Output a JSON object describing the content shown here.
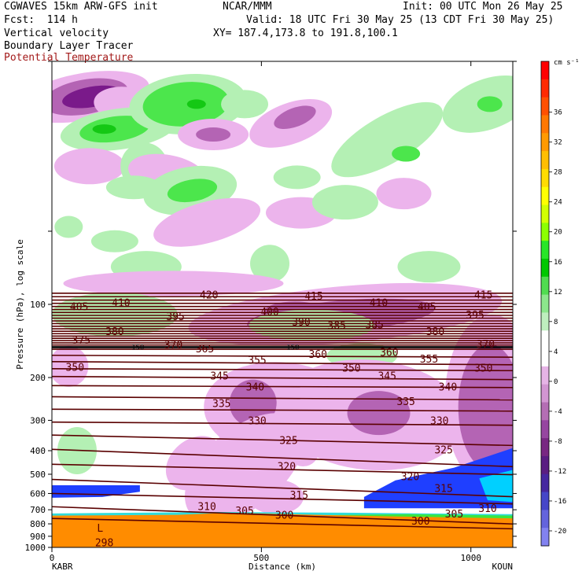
{
  "header": {
    "model": "CGWAVES 15km ARW-GFS init",
    "center": "NCAR/MMM",
    "init": "Init: 00 UTC Mon 26 May 25",
    "fcst": "Fcst:  114 h",
    "valid": "Valid: 18 UTC Fri 30 May 25 (13 CDT Fri 30 May 25)",
    "field1": "Vertical velocity",
    "field2": "Boundary Layer Tracer",
    "field3": "Potential Temperature",
    "xy": "XY= 187.4,173.8 to 191.8,100.1"
  },
  "colors": {
    "theta_line": "#5a0000",
    "tropopause": "#000000",
    "ground": "#ff8c00",
    "pbl_blue": "#1f3fff",
    "pbl_cyan": "#00d0ff",
    "down_light": "#ecb4ec",
    "down_mid": "#b464b4",
    "down_dark": "#7a1a8a",
    "up_light": "#b4f0b4",
    "up_mid": "#4ce64c",
    "up_dark": "#14c814"
  },
  "chart_data": {
    "type": "cross-section contour",
    "xlabel": "Distance (km)",
    "ylabel": "Pressure (hPa), log scale",
    "x_range": [
      0,
      1100
    ],
    "x_ticks": [
      0,
      500,
      1000
    ],
    "y_scale": "log",
    "y_range": [
      1000,
      10
    ],
    "y_ticks": [
      100,
      200,
      300,
      400,
      500,
      600,
      700,
      800,
      900,
      1000
    ],
    "endpoint_left": "KABR",
    "endpoint_right": "KOUN",
    "low_label": "L",
    "low_value": "298",
    "colorbar": {
      "units": "cm s⁻¹",
      "labels": [
        36,
        32,
        28,
        24,
        20,
        16,
        12,
        8,
        4,
        0,
        -4,
        -8,
        -12,
        -16,
        -20
      ],
      "colors": [
        "#ff0000",
        "#ff2a00",
        "#ff5000",
        "#ff7800",
        "#ff9a00",
        "#ffbe00",
        "#ffdc00",
        "#ffff00",
        "#d2ff00",
        "#8cff00",
        "#28e628",
        "#00c800",
        "#50dc50",
        "#8ce68c",
        "#beeebe",
        "#ffffff",
        "#ffffff",
        "#e6b4e6",
        "#d296d2",
        "#b46eb4",
        "#9646a0",
        "#782882",
        "#5a1e82",
        "#4628a0",
        "#4646c8",
        "#6464dc",
        "#8282f0"
      ]
    },
    "theta_labels": [
      {
        "value": "420",
        "x_km": 375,
        "p": 91
      },
      {
        "value": "415",
        "x_km": 625,
        "p": 92
      },
      {
        "value": "415",
        "x_km": 1030,
        "p": 91
      },
      {
        "value": "410",
        "x_km": 165,
        "p": 98
      },
      {
        "value": "410",
        "x_km": 780,
        "p": 98
      },
      {
        "value": "405",
        "x_km": 65,
        "p": 102
      },
      {
        "value": "405",
        "x_km": 895,
        "p": 102
      },
      {
        "value": "400",
        "x_km": 520,
        "p": 107
      },
      {
        "value": "395",
        "x_km": 295,
        "p": 112
      },
      {
        "value": "395",
        "x_km": 1010,
        "p": 110
      },
      {
        "value": "390",
        "x_km": 595,
        "p": 118
      },
      {
        "value": "385",
        "x_km": 680,
        "p": 122
      },
      {
        "value": "385",
        "x_km": 770,
        "p": 121
      },
      {
        "value": "380",
        "x_km": 150,
        "p": 129
      },
      {
        "value": "380",
        "x_km": 915,
        "p": 129
      },
      {
        "value": "375",
        "x_km": 70,
        "p": 140
      },
      {
        "value": "370",
        "x_km": 290,
        "p": 146
      },
      {
        "value": "370",
        "x_km": 1035,
        "p": 145
      },
      {
        "value": "365",
        "x_km": 365,
        "p": 152
      },
      {
        "value": "360",
        "x_km": 635,
        "p": 160
      },
      {
        "value": "360",
        "x_km": 805,
        "p": 157
      },
      {
        "value": "355",
        "x_km": 490,
        "p": 169
      },
      {
        "value": "355",
        "x_km": 900,
        "p": 167
      },
      {
        "value": "350",
        "x_km": 55,
        "p": 181
      },
      {
        "value": "350",
        "x_km": 715,
        "p": 182
      },
      {
        "value": "350",
        "x_km": 1030,
        "p": 182
      },
      {
        "value": "345",
        "x_km": 400,
        "p": 196
      },
      {
        "value": "345",
        "x_km": 800,
        "p": 196
      },
      {
        "value": "340",
        "x_km": 485,
        "p": 218
      },
      {
        "value": "340",
        "x_km": 945,
        "p": 218
      },
      {
        "value": "335",
        "x_km": 405,
        "p": 255
      },
      {
        "value": "335",
        "x_km": 845,
        "p": 250
      },
      {
        "value": "330",
        "x_km": 490,
        "p": 300
      },
      {
        "value": "330",
        "x_km": 925,
        "p": 300
      },
      {
        "value": "325",
        "x_km": 565,
        "p": 362
      },
      {
        "value": "325",
        "x_km": 935,
        "p": 395
      },
      {
        "value": "320",
        "x_km": 560,
        "p": 463
      },
      {
        "value": "320",
        "x_km": 855,
        "p": 510
      },
      {
        "value": "315",
        "x_km": 590,
        "p": 608
      },
      {
        "value": "315",
        "x_km": 935,
        "p": 570
      },
      {
        "value": "310",
        "x_km": 370,
        "p": 675
      },
      {
        "value": "310",
        "x_km": 1040,
        "p": 688
      },
      {
        "value": "305",
        "x_km": 460,
        "p": 705
      },
      {
        "value": "305",
        "x_km": 960,
        "p": 725
      },
      {
        "value": "300",
        "x_km": 555,
        "p": 735
      },
      {
        "value": "300",
        "x_km": 880,
        "p": 775
      }
    ],
    "tropopause_labels": [
      {
        "value": "150",
        "x_km": 205,
        "p": 150
      },
      {
        "value": "150",
        "x_km": 575,
        "p": 150
      }
    ]
  }
}
